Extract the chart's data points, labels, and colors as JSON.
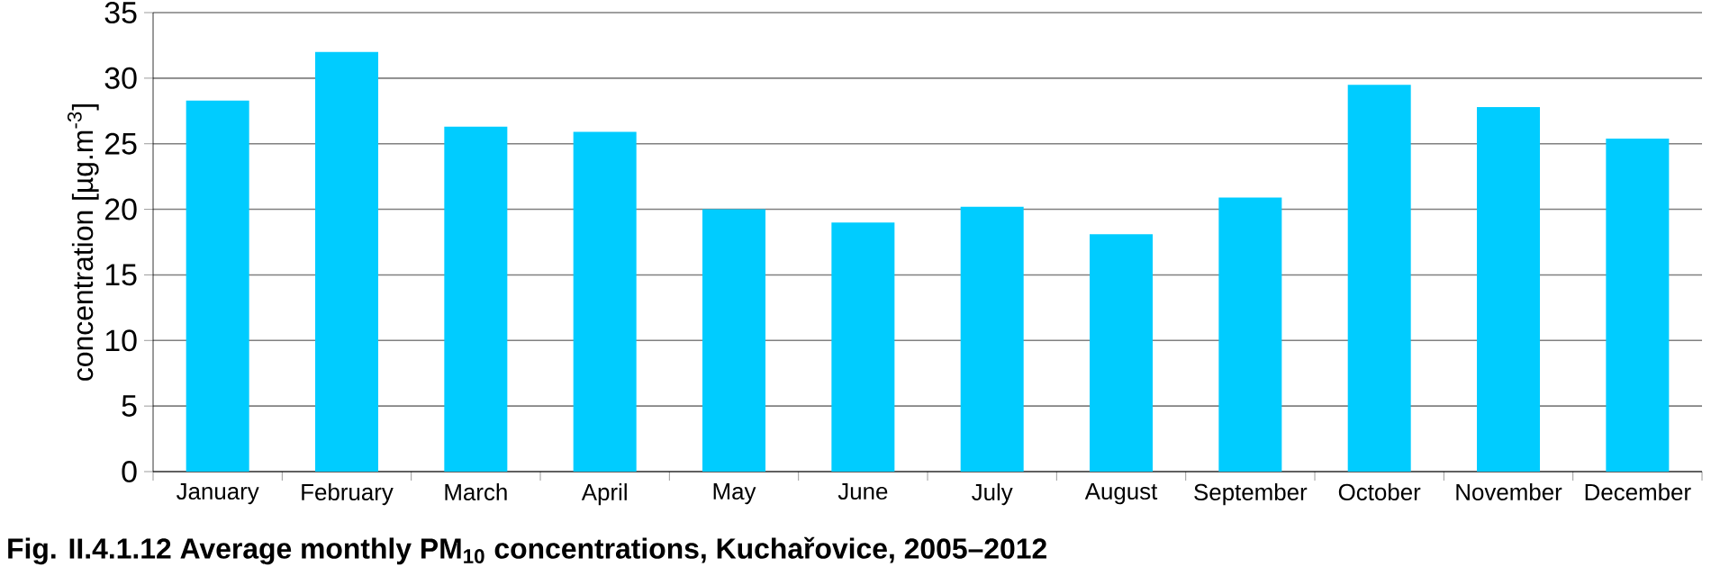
{
  "chart_data": {
    "type": "bar",
    "title": "Fig. II.4.1.12  Average monthly PM$_{10}$ concentrations, Kuchařovice, 2005–2012",
    "ylabel": "concentration [µg.m$^{-3}$]",
    "categories": [
      "January",
      "February",
      "March",
      "April",
      "May",
      "June",
      "July",
      "August",
      "September",
      "October",
      "November",
      "December"
    ],
    "values": [
      28.3,
      32.0,
      26.3,
      25.9,
      20.0,
      19.0,
      20.2,
      18.1,
      20.9,
      29.5,
      27.8,
      25.4
    ],
    "color": "#00ccff",
    "ylim": [
      0,
      35
    ],
    "yticks": [
      0,
      5,
      10,
      15,
      20,
      25,
      30,
      35
    ],
    "grid": "y"
  }
}
